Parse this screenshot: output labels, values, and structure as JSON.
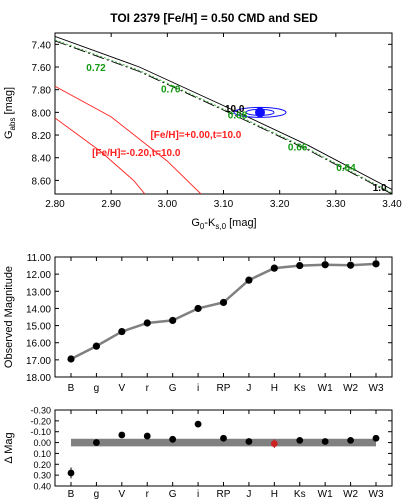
{
  "title": "TOI 2379 [Fe/H] = 0.50 CMD and SED",
  "chart_data": [
    {
      "type": "line",
      "xlabel": "G0-Ks,0 [mag]",
      "xlabel_main": "G",
      "xlabel_sub1": "0",
      "xlabel_mid": "-K",
      "xlabel_sub2": "s,0",
      "xlabel_tail": " [mag]",
      "ylabel": "Gabs [mag]",
      "ylabel_main": "G",
      "ylabel_sub": "abs",
      "ylabel_tail": " [mag]",
      "xlim": [
        2.8,
        3.4
      ],
      "ylim": [
        8.72,
        7.3
      ],
      "x_reversed": false,
      "y_reversed": true,
      "xticks": [
        "2.80",
        "2.90",
        "3.00",
        "3.10",
        "3.20",
        "3.30",
        "3.40"
      ],
      "yticks": [
        "7.40",
        "7.60",
        "7.80",
        "8.00",
        "8.20",
        "8.40",
        "8.60"
      ],
      "series": [
        {
          "name": "",
          "style": "solid",
          "color": "#000000",
          "x": [
            2.8,
            2.95,
            3.1,
            3.25,
            3.4
          ],
          "y": [
            7.33,
            7.6,
            7.94,
            8.29,
            8.68
          ]
        },
        {
          "name": "",
          "style": "dashed",
          "color": "#000000",
          "x": [
            2.8,
            2.95,
            3.1,
            3.25,
            3.4
          ],
          "y": [
            7.37,
            7.64,
            7.98,
            8.33,
            8.72
          ]
        },
        {
          "name": "[Fe/H]=+0.00,t=10.0",
          "style": "solid",
          "color": "#ff2020",
          "x": [
            2.8,
            2.9,
            3.0,
            3.06
          ],
          "y": [
            7.77,
            8.04,
            8.43,
            8.72
          ]
        },
        {
          "name": "[Fe/H]=-0.20,t=10.0",
          "style": "solid",
          "color": "#ff2020",
          "x": [
            2.8,
            2.88,
            2.94,
            2.96
          ],
          "y": [
            8.05,
            8.34,
            8.6,
            8.72
          ]
        }
      ],
      "mass_labels": [
        {
          "text": "0.72",
          "x": 2.873,
          "y": 7.6,
          "color": "#119911"
        },
        {
          "text": "0.70",
          "x": 3.006,
          "y": 7.79,
          "color": "#119911"
        },
        {
          "text": "0.68",
          "x": 3.125,
          "y": 8.02,
          "color": "#119911"
        },
        {
          "text": "0.66",
          "x": 3.232,
          "y": 8.3,
          "color": "#119911"
        },
        {
          "text": "0.64",
          "x": 3.318,
          "y": 8.48,
          "color": "#119911"
        },
        {
          "text": "10.0",
          "x": 3.12,
          "y": 7.96,
          "color": "#000000"
        },
        {
          "text": "1.0",
          "x": 3.378,
          "y": 8.66,
          "color": "#000000"
        }
      ],
      "isochrone_labels": [
        {
          "text": "[Fe/H]=+0.00,t=10.0",
          "x": 2.97,
          "y": 8.19,
          "color": "#ff2020"
        },
        {
          "text": "[Fe/H]=-0.20,t=10.0",
          "x": 2.866,
          "y": 8.35,
          "color": "#ff2020"
        }
      ],
      "star": {
        "x": 3.165,
        "y": 8.0,
        "color": "#1010ff"
      }
    },
    {
      "type": "scatter",
      "ylabel": "Observed Magnitude",
      "categories": [
        "B",
        "g",
        "V",
        "r",
        "G",
        "i",
        "RP",
        "J",
        "H",
        "Ks",
        "W1",
        "W2",
        "W3"
      ],
      "ylim": [
        18.0,
        11.0
      ],
      "y_reversed": true,
      "yticks": [
        "11.00",
        "12.00",
        "13.00",
        "14.00",
        "15.00",
        "16.00",
        "17.00",
        "18.00"
      ],
      "observed": [
        16.95,
        16.2,
        15.35,
        14.85,
        14.7,
        14.0,
        13.65,
        12.35,
        11.65,
        11.5,
        11.45,
        11.48,
        11.4
      ],
      "model": [
        16.95,
        16.2,
        15.35,
        14.85,
        14.7,
        14.0,
        13.65,
        12.35,
        11.65,
        11.5,
        11.45,
        11.48,
        11.4
      ],
      "colors": {
        "points": "#000000",
        "model": "#808080"
      }
    },
    {
      "type": "scatter",
      "ylabel": "Δ Mag",
      "categories": [
        "B",
        "g",
        "V",
        "r",
        "G",
        "i",
        "RP",
        "J",
        "H",
        "Ks",
        "W1",
        "W2",
        "W3"
      ],
      "ylim": [
        0.4,
        -0.3
      ],
      "y_reversed": true,
      "yticks": [
        "-0.30",
        "-0.20",
        "-0.10",
        "0.00",
        "0.10",
        "0.20",
        "0.30",
        "0.40"
      ],
      "residuals": [
        0.28,
        0.0,
        -0.07,
        -0.06,
        -0.03,
        -0.17,
        -0.04,
        -0.01,
        0.01,
        -0.02,
        -0.01,
        -0.02,
        -0.04
      ],
      "errors": [
        0.05,
        0.0,
        0.0,
        0.0,
        0.0,
        0.0,
        0.0,
        0.0,
        0.04,
        0.0,
        0.0,
        0.0,
        0.02
      ],
      "special_point_color": "#cc2222",
      "special_index": 8,
      "colors": {
        "points": "#000000",
        "band": "#808080"
      }
    }
  ]
}
